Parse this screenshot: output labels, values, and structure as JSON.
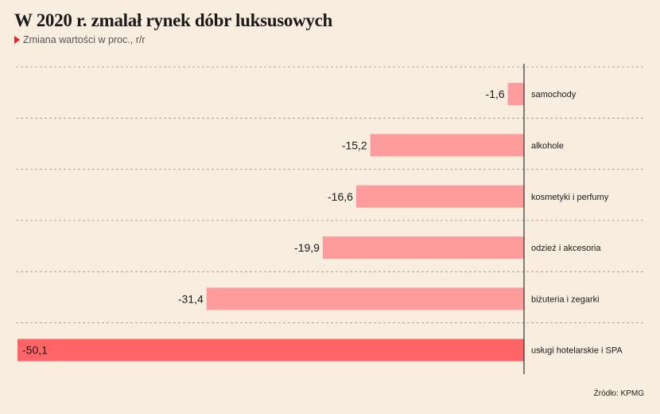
{
  "header": {
    "title": "W 2020 r. zmalał rynek dóbr luksusowych",
    "subtitle": "Zmiana wartości w proc., r/r"
  },
  "footer": {
    "source": "Źródło: KPMG"
  },
  "colors": {
    "bar": "#fe9c9b",
    "bar_highlight": "#ff6566",
    "background": "#f9ede0",
    "marker": "#e8202a"
  },
  "chart_data": {
    "type": "bar",
    "orientation": "horizontal",
    "categories": [
      "samochody",
      "alkohole",
      "kosmetyki i perfumy",
      "odzież i akcesoria",
      "biżuteria i zegarki",
      "usługi hotelarskie i SPA"
    ],
    "values": [
      -1.6,
      -15.2,
      -16.6,
      -19.9,
      -31.4,
      -50.1
    ],
    "value_labels": [
      "-1,6",
      "-15,2",
      "-16,6",
      "-19,9",
      "-31,4",
      "-50,1"
    ],
    "highlight_index": 5,
    "title": "W 2020 r. zmalał rynek dóbr luksusowych",
    "subtitle": "Zmiana wartości w proc., r/r",
    "xlim": [
      -50.1,
      0
    ],
    "grid": "dashed row separators",
    "legend": "none"
  }
}
